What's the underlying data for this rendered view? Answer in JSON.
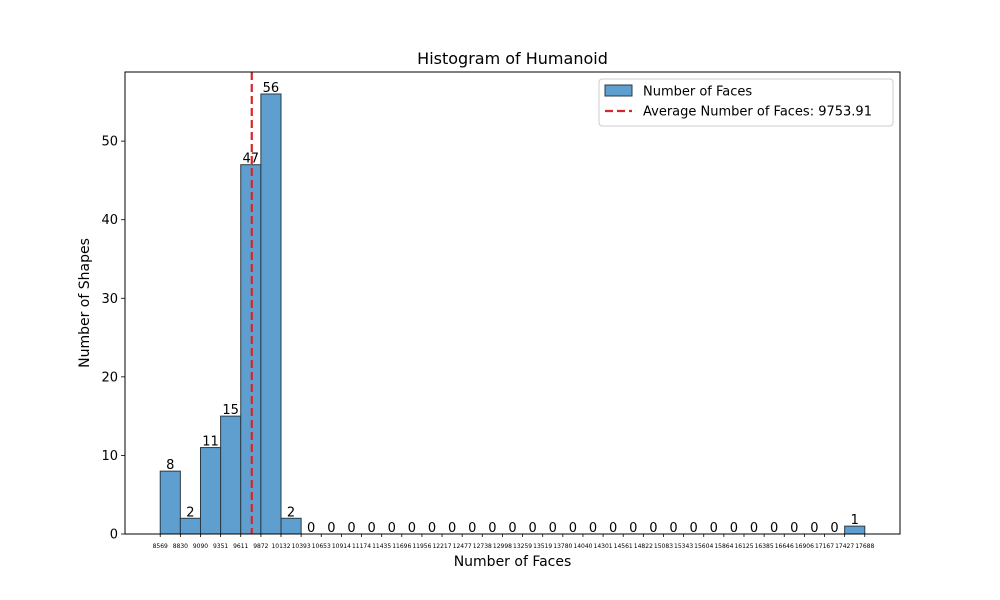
{
  "colors": {
    "bar_fill": "#5f9fcf",
    "bar_edge": "#2a3a46",
    "mean_line": "#d62728",
    "axis": "#000000",
    "legend_border": "#cccccc"
  },
  "chart_data": {
    "type": "bar",
    "title": "Histogram of Humanoid",
    "xlabel": "Number of Faces",
    "ylabel": "Number of Shapes",
    "grid": false,
    "legend_position": "top-right",
    "ylim": [
      0,
      58.8
    ],
    "yticks": [
      0,
      10,
      20,
      30,
      40,
      50
    ],
    "bin_edges": [
      8569,
      8830,
      9090,
      9351,
      9611,
      9872,
      10132,
      10393,
      10653,
      10914,
      11174,
      11435,
      11696,
      11956,
      12217,
      12477,
      12738,
      12998,
      13259,
      13519,
      13780,
      14040,
      14301,
      14561,
      14822,
      15083,
      15343,
      15604,
      15864,
      16125,
      16385,
      16646,
      16906,
      17167,
      17427,
      17688
    ],
    "values": [
      8,
      2,
      11,
      15,
      47,
      56,
      2,
      0,
      0,
      0,
      0,
      0,
      0,
      0,
      0,
      0,
      0,
      0,
      0,
      0,
      0,
      0,
      0,
      0,
      0,
      0,
      0,
      0,
      0,
      0,
      0,
      0,
      0,
      0,
      1
    ],
    "series": [
      {
        "name": "Number of Faces",
        "kind": "bar"
      },
      {
        "name": "Average Number of Faces: 9753.91",
        "kind": "vline",
        "value": 9753.91
      }
    ]
  }
}
